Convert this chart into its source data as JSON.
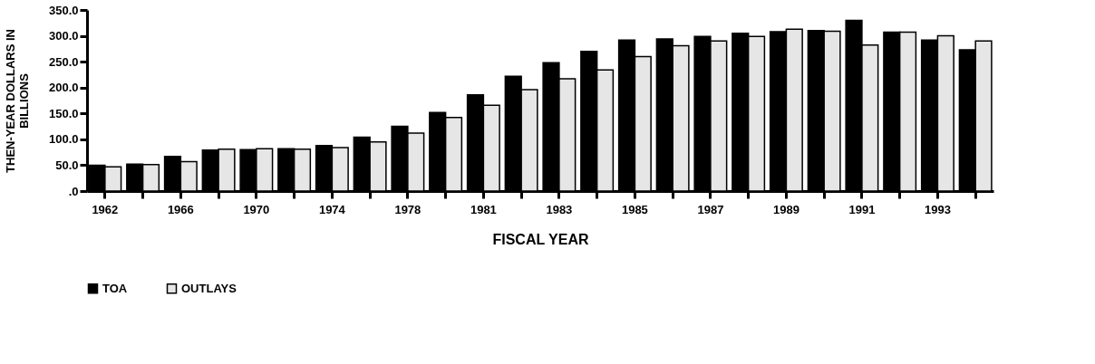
{
  "chart_data": {
    "type": "bar",
    "xlabel": "FISCAL YEAR",
    "ylabel": "THEN-YEAR DOLLARS IN BILLIONS",
    "categories": [
      "1962",
      null,
      "1966",
      null,
      "1970",
      null,
      "1974",
      null,
      "1978",
      null,
      "1981",
      null,
      "1983",
      null,
      "1985",
      null,
      "1987",
      null,
      "1989",
      null,
      "1991",
      null,
      "1993",
      null
    ],
    "series": [
      {
        "name": "TOA",
        "color": "#000000",
        "values": [
          50,
          52,
          67,
          79,
          80,
          82,
          88,
          104,
          125,
          152,
          186,
          222,
          248,
          270,
          292,
          294,
          299,
          305,
          308,
          310,
          330,
          307,
          292,
          273
        ]
      },
      {
        "name": "OUTLAYS",
        "color": "#e6e6e6",
        "values": [
          47,
          51,
          57,
          81,
          82,
          81,
          84,
          95,
          112,
          142,
          166,
          196,
          217,
          234,
          260,
          281,
          290,
          299,
          313,
          309,
          282,
          307,
          300,
          290
        ]
      }
    ],
    "ylim": [
      0,
      350
    ],
    "yticks": [
      {
        "value": 0,
        "label": ".0"
      },
      {
        "value": 50,
        "label": "50.0"
      },
      {
        "value": 100,
        "label": "100.0"
      },
      {
        "value": 150,
        "label": "150.0"
      },
      {
        "value": 200,
        "label": "200.0"
      },
      {
        "value": 250,
        "label": "250.0"
      },
      {
        "value": 300,
        "label": "300.0"
      },
      {
        "value": 350,
        "label": "350.0"
      }
    ],
    "grid": false,
    "legend": "bottom"
  }
}
